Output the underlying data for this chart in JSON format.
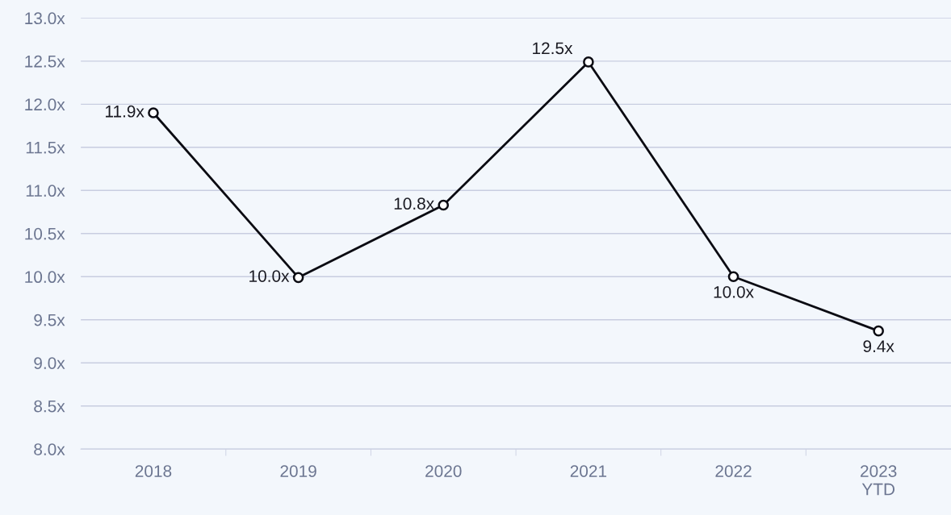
{
  "chart_data": {
    "type": "line",
    "categories": [
      "2018",
      "2019",
      "2020",
      "2021",
      "2022",
      "2023\nYTD"
    ],
    "series": [
      {
        "color": "#0b0b12",
        "values": [
          11.9,
          9.99,
          10.83,
          12.49,
          10.0,
          9.37
        ],
        "value_labels": [
          "11.9x",
          "10.0x",
          "10.8x",
          "12.5x",
          "10.0x",
          "9.4x"
        ]
      }
    ],
    "ylim": [
      8.0,
      13.0
    ],
    "yticks": [
      {
        "value": 8.0,
        "label": "8.0x"
      },
      {
        "value": 8.5,
        "label": "8.5x"
      },
      {
        "value": 9.0,
        "label": "9.0x"
      },
      {
        "value": 9.5,
        "label": "9.5x"
      },
      {
        "value": 10.0,
        "label": "10.0x"
      },
      {
        "value": 10.5,
        "label": "10.5x"
      },
      {
        "value": 11.0,
        "label": "11.0x"
      },
      {
        "value": 11.5,
        "label": "11.5x"
      },
      {
        "value": 12.0,
        "label": "12.0x"
      },
      {
        "value": 12.5,
        "label": "12.5x"
      },
      {
        "value": 13.0,
        "label": "13.0x"
      }
    ],
    "grid": "y",
    "marker": "circle",
    "line_style": "solid",
    "legend": false
  }
}
